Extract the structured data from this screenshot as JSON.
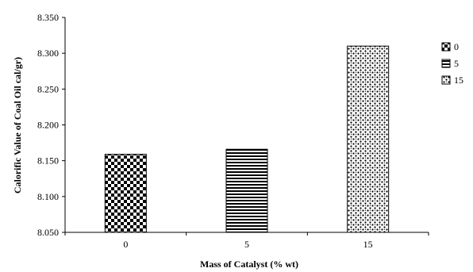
{
  "chart_data": {
    "type": "bar",
    "categories": [
      "0",
      "5",
      "15"
    ],
    "values": [
      8.159,
      8.166,
      8.31
    ],
    "xlabel": "Mass of Catalyst (% wt)",
    "ylabel": "Calorific Value of Coal Oil cal/gr)",
    "ylim": [
      8.05,
      8.35
    ],
    "yticks": [
      "8.050",
      "8.100",
      "8.150",
      "8.200",
      "8.250",
      "8.300",
      "8.350"
    ],
    "grid": false,
    "legend": {
      "placement": "right",
      "entries": [
        "0",
        "5",
        "15"
      ]
    },
    "patterns": [
      "checkerboard",
      "horizontal-stripes",
      "dots"
    ]
  }
}
